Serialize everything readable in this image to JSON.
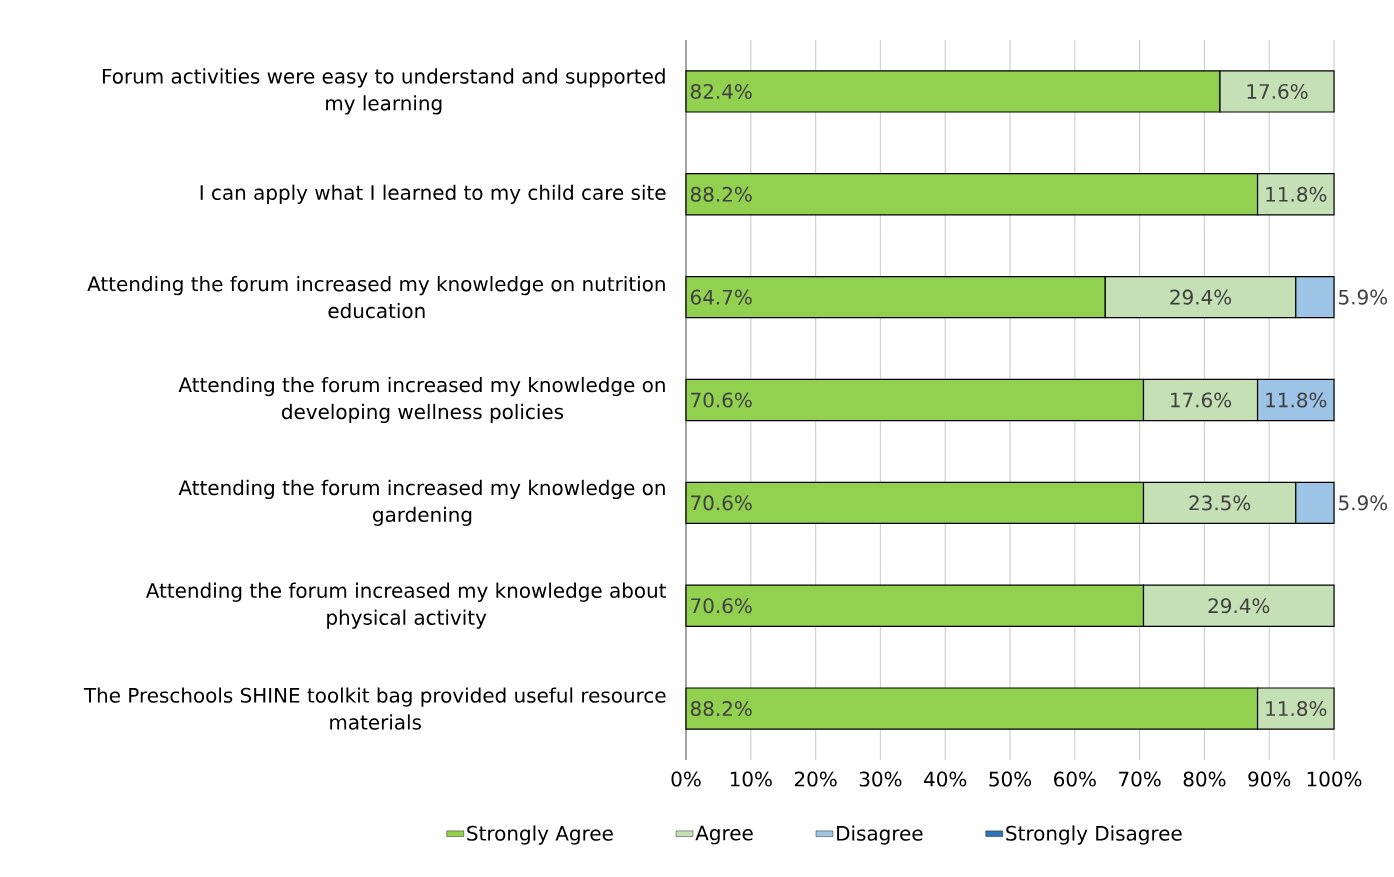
{
  "chart_data": {
    "type": "bar",
    "orientation": "horizontal",
    "stacked": true,
    "categories": [
      "Forum activities were easy to understand and supported my learning",
      "I can apply what I learned to my child care site",
      "Attending the forum increased my knowledge on nutrition education",
      "Attending the forum increased my knowledge on developing wellness policies",
      "Attending the forum increased my knowledge on gardening",
      "Attending the forum increased my knowledge about physical activity",
      "The Preschools SHINE toolkit bag provided useful resource materials"
    ],
    "series": [
      {
        "name": "Strongly Agree",
        "color": "#92d050",
        "values": [
          82.4,
          88.2,
          64.7,
          70.6,
          70.6,
          70.6,
          88.2
        ],
        "value_labels": [
          "82.4%",
          "88.2%",
          "64.7%",
          "70.6%",
          "70.6%",
          "70.6%",
          "88.2%"
        ]
      },
      {
        "name": "Agree",
        "color": "#c5e0b4",
        "values": [
          17.6,
          11.8,
          29.4,
          17.6,
          23.5,
          29.4,
          11.8
        ],
        "value_labels": [
          "17.6%",
          "11.8%",
          "29.4%",
          "17.6%",
          "23.5%",
          "29.4%",
          "11.8%"
        ]
      },
      {
        "name": "Disagree",
        "color": "#9dc3e6",
        "values": [
          null,
          null,
          5.9,
          11.8,
          5.9,
          null,
          null
        ],
        "value_labels": [
          null,
          null,
          "5.9%",
          "11.8%",
          "5.9%",
          null,
          null
        ]
      },
      {
        "name": "Strongly Disagree",
        "color": "#2e75b6",
        "values": [
          null,
          null,
          null,
          null,
          null,
          null,
          null
        ],
        "value_labels": [
          null,
          null,
          null,
          null,
          null,
          null,
          null
        ]
      }
    ],
    "xlim": [
      0,
      100
    ],
    "xticks": [
      {
        "value": 0,
        "label": "0%"
      },
      {
        "value": 10,
        "label": "10%"
      },
      {
        "value": 20,
        "label": "20%"
      },
      {
        "value": 30,
        "label": "30%"
      },
      {
        "value": 40,
        "label": "40%"
      },
      {
        "value": 50,
        "label": "50%"
      },
      {
        "value": 60,
        "label": "60%"
      },
      {
        "value": 70,
        "label": "70%"
      },
      {
        "value": 80,
        "label": "80%"
      },
      {
        "value": 90,
        "label": "90%"
      },
      {
        "value": 100,
        "label": "100%"
      }
    ],
    "grid": "x",
    "legend": "bottom"
  }
}
